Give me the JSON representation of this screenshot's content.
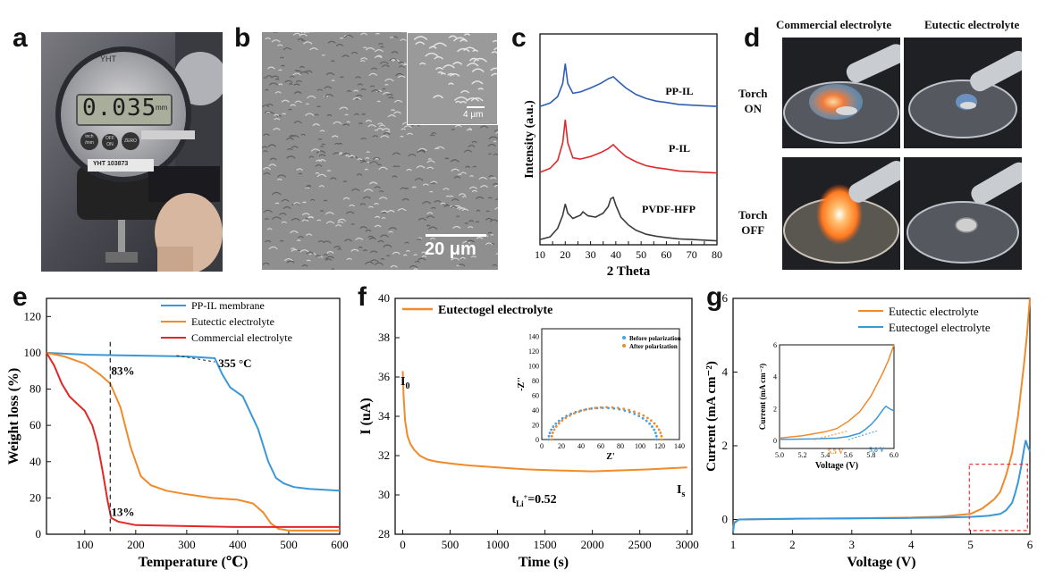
{
  "panels": {
    "a": "a",
    "b": "b",
    "c": "c",
    "d": "d",
    "e": "e",
    "f": "f",
    "g": "g"
  },
  "gauge": {
    "reading": "0.035",
    "unit": "mm",
    "brand": "YHT",
    "btn_inch": "inch\n/mm",
    "btn_off": "OFF\nON",
    "btn_zero": "ZERO",
    "serial": "YHT 103873"
  },
  "sem": {
    "scale_main": "20 μm",
    "scale_inset": "4 μm"
  },
  "xrd": {
    "chart_data": {
      "type": "line",
      "xlabel": "2 Theta",
      "ylabel": "Intensity (a.u.)",
      "xlim": [
        10,
        80
      ],
      "xticks": [
        10,
        15,
        20,
        25,
        30,
        35,
        40,
        45,
        50,
        55,
        60,
        65,
        70,
        75,
        80
      ],
      "series": [
        {
          "name": "PP-IL",
          "color": "#2e5fb3",
          "offset": 2.0,
          "x": [
            10,
            14,
            17,
            19,
            20,
            21,
            23,
            26,
            30,
            34,
            37,
            39,
            41,
            44,
            48,
            52,
            56,
            60,
            65,
            70,
            75,
            80
          ],
          "y": [
            0.1,
            0.15,
            0.25,
            0.45,
            0.75,
            0.45,
            0.3,
            0.32,
            0.38,
            0.45,
            0.52,
            0.55,
            0.48,
            0.38,
            0.28,
            0.22,
            0.18,
            0.16,
            0.13,
            0.12,
            0.11,
            0.1
          ]
        },
        {
          "name": "P-IL",
          "color": "#e0282a",
          "offset": 1.0,
          "x": [
            10,
            14,
            17,
            19,
            20,
            21,
            23,
            26,
            30,
            34,
            37,
            39,
            41,
            44,
            48,
            52,
            56,
            60,
            65,
            70,
            75,
            80
          ],
          "y": [
            0.1,
            0.16,
            0.28,
            0.55,
            0.9,
            0.55,
            0.32,
            0.3,
            0.34,
            0.4,
            0.46,
            0.52,
            0.44,
            0.34,
            0.26,
            0.2,
            0.17,
            0.15,
            0.12,
            0.11,
            0.1,
            0.09
          ]
        },
        {
          "name": "PVDF-HFP",
          "color": "#3b3b3b",
          "offset": 0.0,
          "x": [
            10,
            14,
            17,
            19,
            20,
            21,
            23,
            26,
            27,
            29,
            32,
            35,
            37,
            38,
            39,
            40,
            42,
            45,
            48,
            52,
            56,
            60,
            65,
            70,
            75,
            80
          ],
          "y": [
            0.08,
            0.12,
            0.25,
            0.45,
            0.62,
            0.48,
            0.4,
            0.45,
            0.5,
            0.44,
            0.42,
            0.48,
            0.58,
            0.7,
            0.72,
            0.6,
            0.42,
            0.3,
            0.22,
            0.16,
            0.13,
            0.11,
            0.09,
            0.08,
            0.07,
            0.06
          ]
        }
      ]
    }
  },
  "flame": {
    "col1": "Commercial electrolyte",
    "col2": "Eutectic electrolyte",
    "row1": "Torch\nON",
    "row2": "Torch\nOFF"
  },
  "tga": {
    "chart_data": {
      "type": "line",
      "xlabel": "Temperature (℃)",
      "ylabel": "Weight loss (%)",
      "xlim": [
        25,
        600
      ],
      "ylim": [
        0,
        130
      ],
      "xticks": [
        100,
        200,
        300,
        400,
        500,
        600
      ],
      "yticks": [
        0,
        20,
        40,
        60,
        80,
        100,
        120
      ],
      "annotations": {
        "a83": "83%",
        "a13": "13%",
        "a355": "355 °C"
      },
      "series": [
        {
          "name": "PP-IL membrane",
          "color": "#3a97d8",
          "x": [
            25,
            100,
            200,
            300,
            355,
            370,
            385,
            410,
            440,
            460,
            475,
            490,
            510,
            540,
            600
          ],
          "y": [
            100,
            99,
            98.5,
            98,
            97,
            88,
            81,
            76,
            58,
            40,
            31,
            28,
            26,
            25,
            24
          ]
        },
        {
          "name": "Eutectic electrolyte",
          "color": "#f08a2a",
          "x": [
            25,
            60,
            100,
            130,
            150,
            170,
            190,
            210,
            230,
            260,
            300,
            350,
            400,
            430,
            450,
            465,
            480,
            500,
            600
          ],
          "y": [
            100,
            98,
            94,
            88,
            83,
            70,
            48,
            32,
            27,
            24,
            22,
            20,
            19,
            17,
            12,
            6,
            3,
            2,
            2
          ]
        },
        {
          "name": "Commercial electrolyte",
          "color": "#e32626",
          "x": [
            25,
            40,
            55,
            70,
            85,
            100,
            115,
            125,
            135,
            145,
            152,
            165,
            200,
            300,
            400,
            600
          ],
          "y": [
            100,
            93,
            83,
            76,
            72,
            68,
            60,
            50,
            35,
            18,
            9,
            7,
            5,
            4.5,
            4,
            4
          ]
        }
      ]
    }
  },
  "polar": {
    "chart_data": {
      "type": "line",
      "xlabel": "Time (s)",
      "ylabel": "I (uA)",
      "xlim": [
        0,
        3000
      ],
      "ylim": [
        28,
        40
      ],
      "xticks": [
        0,
        500,
        1000,
        1500,
        2000,
        2500,
        3000
      ],
      "yticks": [
        28,
        30,
        32,
        34,
        36,
        38,
        40
      ],
      "legend": "Eutectogel electrolyte",
      "color": "#f08a2a",
      "label_I0": "I",
      "label_I0_sub": "0",
      "label_Is": "I",
      "label_Is_sub": "s",
      "tli": "t",
      "tli_sub": "Li",
      "tli_sup": "+",
      "tli_val": "=0.52",
      "x": [
        0,
        10,
        25,
        50,
        80,
        120,
        180,
        260,
        350,
        500,
        700,
        1000,
        1300,
        1600,
        2000,
        2300,
        2600,
        2800,
        3000
      ],
      "y": [
        36.3,
        35.0,
        33.8,
        33.0,
        32.6,
        32.3,
        32.0,
        31.8,
        31.7,
        31.6,
        31.5,
        31.4,
        31.3,
        31.25,
        31.2,
        31.25,
        31.3,
        31.35,
        31.4
      ]
    },
    "inset": {
      "xlabel": "Z'",
      "ylabel": "-Z''",
      "xlim": [
        0,
        140
      ],
      "ylim": [
        0,
        150
      ],
      "xticks": [
        0,
        20,
        40,
        60,
        80,
        100,
        120,
        140
      ],
      "yticks": [
        0,
        20,
        40,
        60,
        80,
        100,
        120,
        140
      ],
      "series": [
        {
          "name": "Before polarization",
          "color": "#4a9fe0",
          "center": 62,
          "radius": 55,
          "start": 7
        },
        {
          "name": "After polarization",
          "color": "#f08a2a",
          "center": 66,
          "radius": 56,
          "start": 9
        }
      ]
    }
  },
  "lsv": {
    "chart_data": {
      "type": "line",
      "xlabel": "Voltage (V)",
      "ylabel": "Current (mA cm⁻²)",
      "xlim": [
        1,
        6
      ],
      "ylim": [
        -0.4,
        6
      ],
      "xticks": [
        1,
        2,
        3,
        4,
        5,
        6
      ],
      "yticks": [
        0,
        2,
        4,
        6
      ],
      "series": [
        {
          "name": "Eutectic electrolyte",
          "color": "#f08a2a",
          "x": [
            1,
            1.02,
            1.1,
            1.5,
            2,
            3,
            4,
            4.5,
            5,
            5.2,
            5.4,
            5.5,
            5.6,
            5.7,
            5.8,
            5.9,
            5.95,
            6.0
          ],
          "y": [
            -0.25,
            -0.08,
            0,
            0.01,
            0.02,
            0.03,
            0.05,
            0.08,
            0.15,
            0.3,
            0.55,
            0.75,
            1.2,
            1.8,
            2.8,
            4.2,
            5.0,
            6.0
          ]
        },
        {
          "name": "Eutectogel electrolyte",
          "color": "#3a97d8",
          "x": [
            1,
            1.02,
            1.1,
            1.5,
            2,
            3,
            4,
            4.5,
            5,
            5.3,
            5.5,
            5.6,
            5.7,
            5.75,
            5.8,
            5.85,
            5.9,
            5.93,
            5.96,
            6.0
          ],
          "y": [
            -0.35,
            -0.1,
            0,
            0.01,
            0.02,
            0.03,
            0.04,
            0.05,
            0.07,
            0.1,
            0.15,
            0.25,
            0.45,
            0.7,
            1.0,
            1.4,
            1.9,
            2.15,
            2.0,
            1.85
          ]
        }
      ]
    },
    "inset": {
      "xlabel": "Voltage (V)",
      "ylabel": "Current (mA cm⁻²)",
      "xlim": [
        5.0,
        6.0
      ],
      "ylim": [
        -0.5,
        6
      ],
      "xticks": [
        "5.0",
        "5.2",
        "5.4",
        "5.6",
        "5.8",
        "6.0"
      ],
      "yticks": [
        0,
        2,
        4,
        6
      ],
      "ann_55": "5.5 V",
      "ann_58": "5.8 V"
    }
  }
}
